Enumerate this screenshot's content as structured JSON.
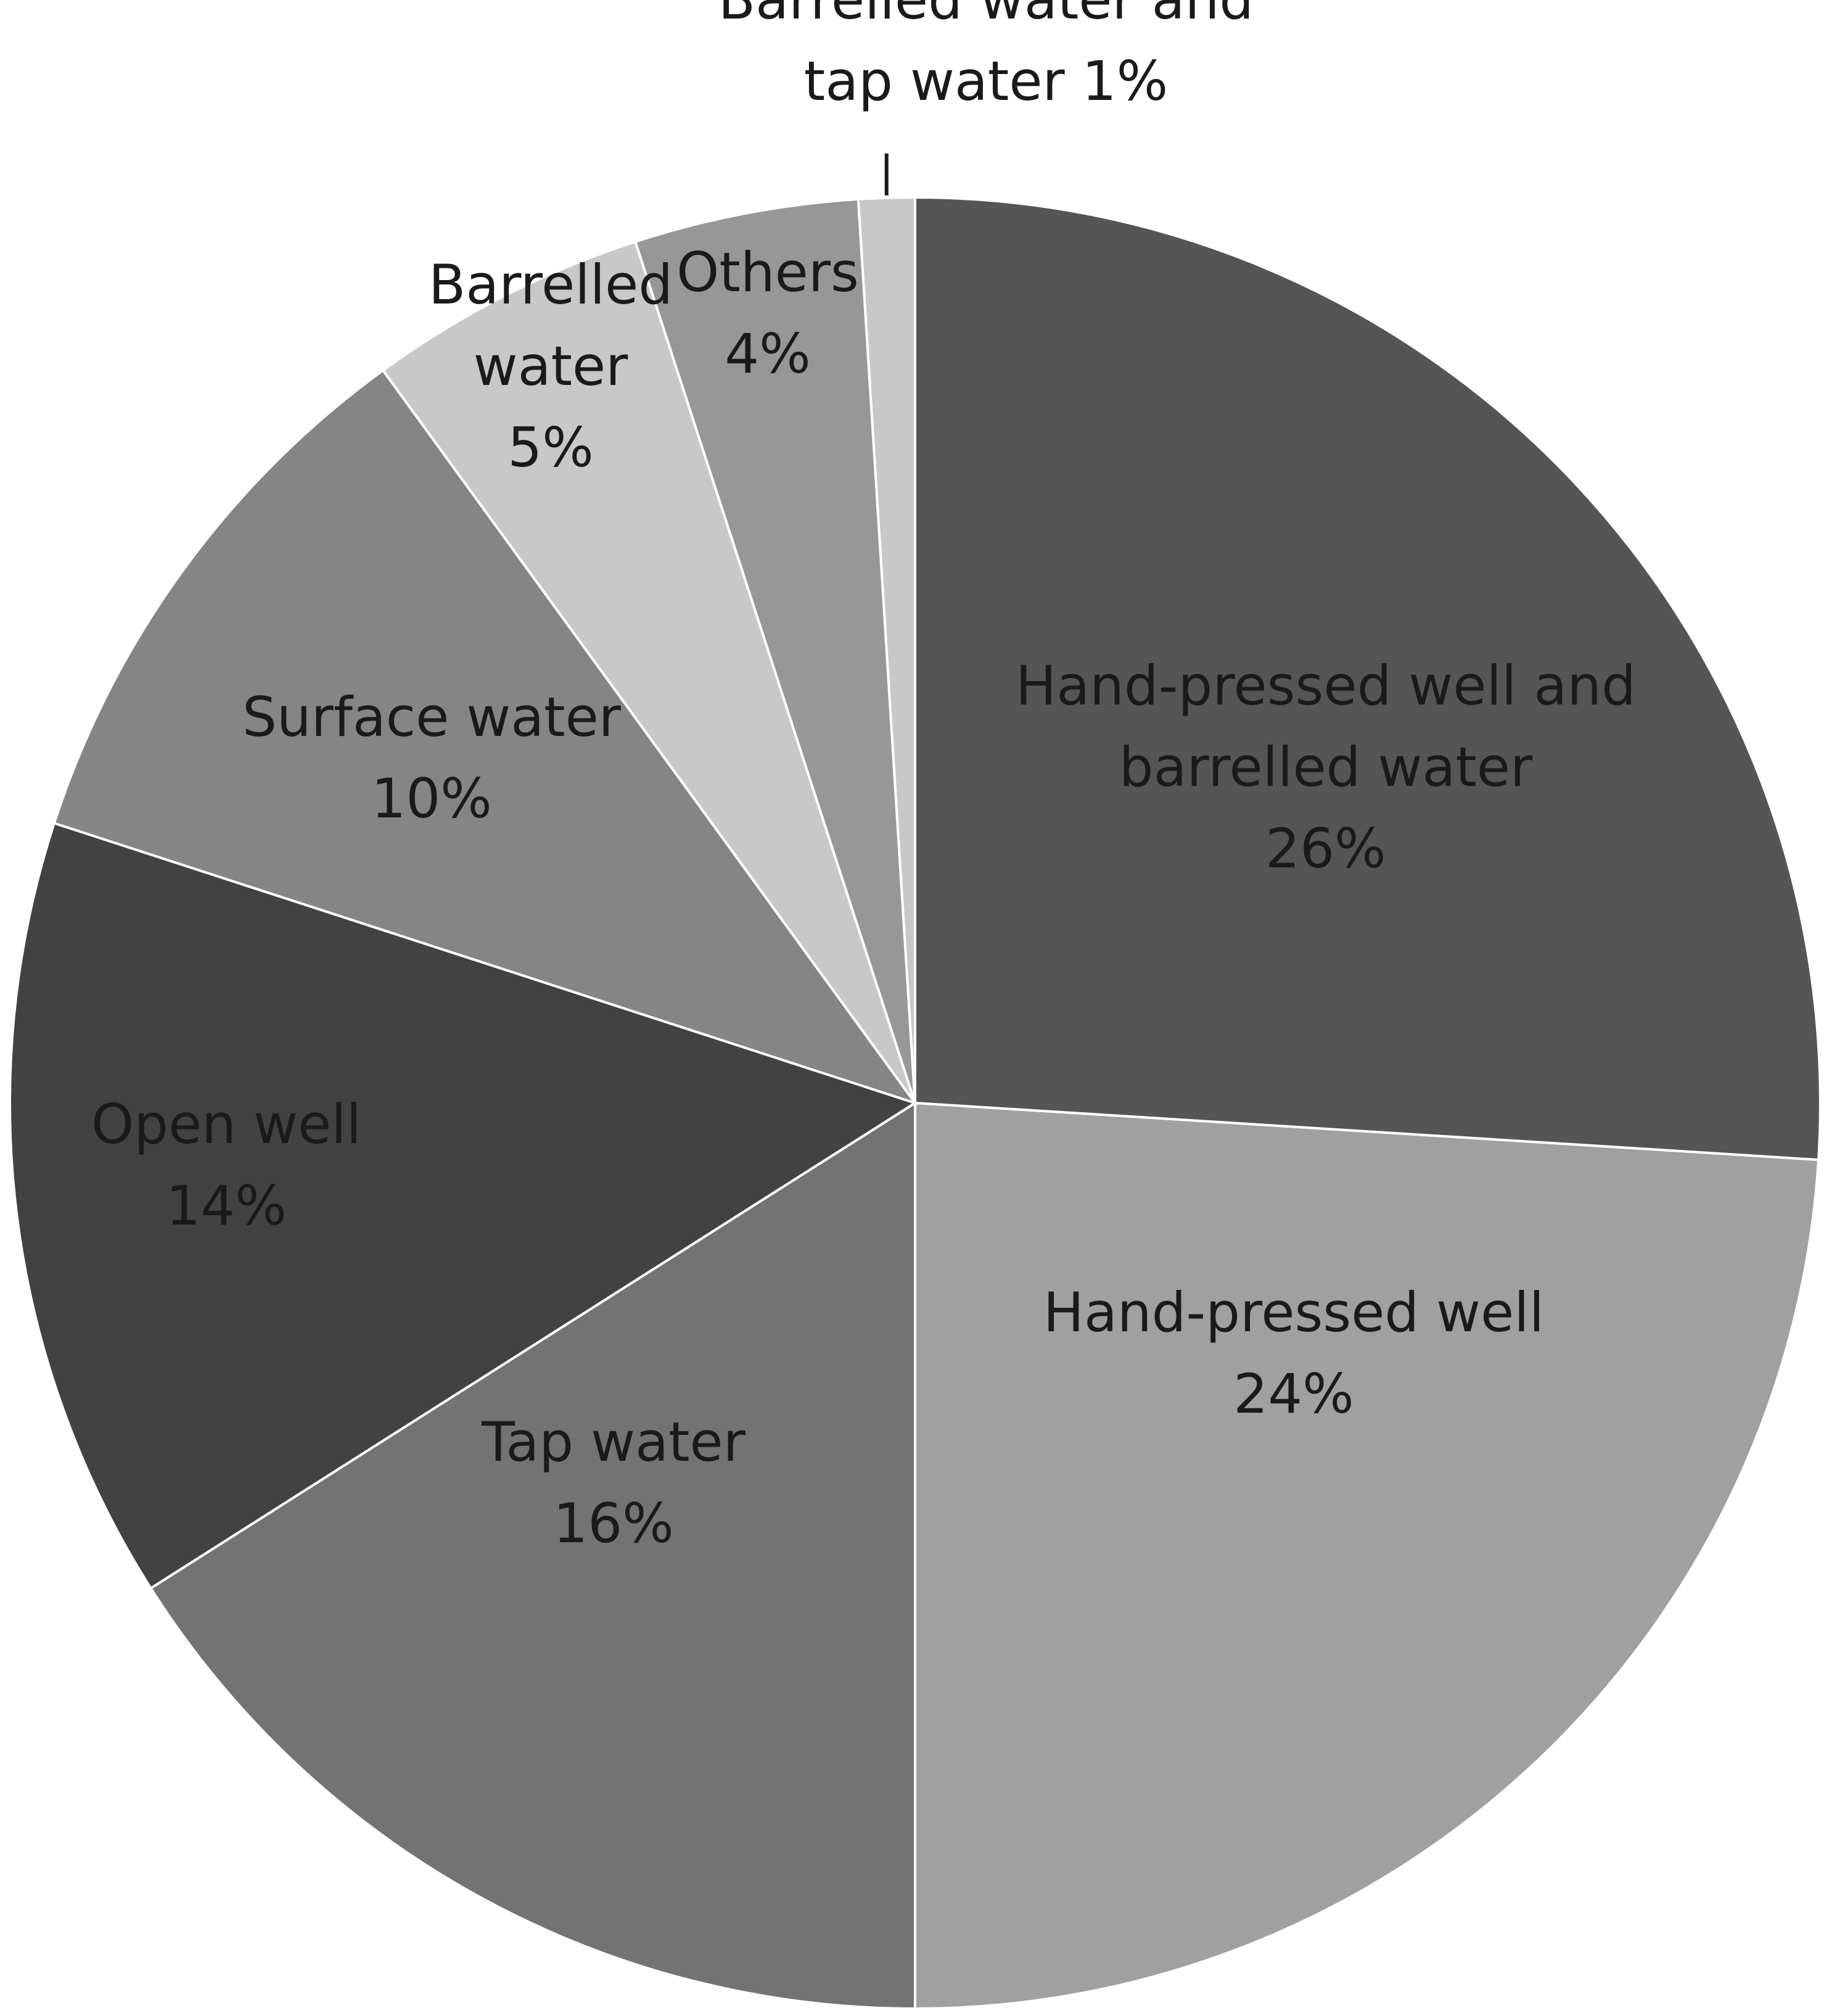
{
  "chart_data": {
    "type": "pie",
    "title": "",
    "slices": [
      {
        "label_lines": [
          "Hand-pressed well and",
          "barrelled water"
        ],
        "pct_label": "26%",
        "value": 26,
        "color": "#555555",
        "label_color": "#1a1a1a"
      },
      {
        "label_lines": [
          "Hand-pressed well"
        ],
        "pct_label": "24%",
        "value": 24,
        "color": "#a0a0a0",
        "label_color": "#1a1a1a"
      },
      {
        "label_lines": [
          "Tap water"
        ],
        "pct_label": "16%",
        "value": 16,
        "color": "#737373",
        "label_color": "#1a1a1a"
      },
      {
        "label_lines": [
          "Open well"
        ],
        "pct_label": "14%",
        "value": 14,
        "color": "#424242",
        "label_color": "#1a1a1a"
      },
      {
        "label_lines": [
          "Surface water"
        ],
        "pct_label": "10%",
        "value": 10,
        "color": "#858585",
        "label_color": "#1a1a1a"
      },
      {
        "label_lines": [
          "Barrelled",
          "water"
        ],
        "pct_label": "5%",
        "value": 5,
        "color": "#c8c8c8",
        "label_color": "#1a1a1a"
      },
      {
        "label_lines": [
          "Others"
        ],
        "pct_label": "4%",
        "value": 4,
        "color": "#979797",
        "label_color": "#1a1a1a"
      },
      {
        "label_lines": [
          "Barrelled water and",
          "tap water 1%"
        ],
        "pct_label": "",
        "value": 1,
        "color": "#c8c8c8",
        "label_color": "#1a1a1a",
        "callout": true
      }
    ],
    "start_angle_deg": 0,
    "direction": "clockwise"
  }
}
